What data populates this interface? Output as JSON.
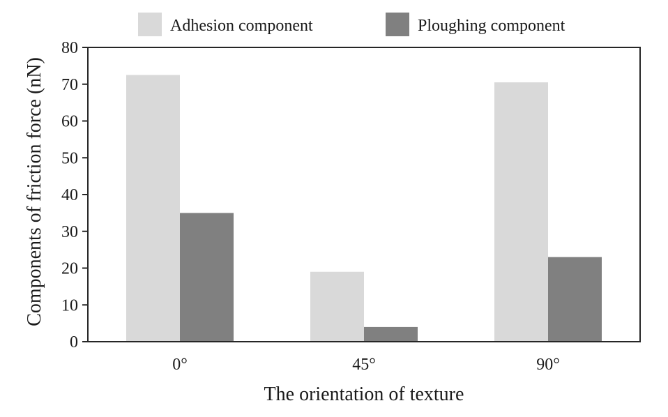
{
  "chart_data": {
    "type": "bar",
    "title": "",
    "xlabel": "The orientation of texture",
    "ylabel": "Components of friction force (nN)",
    "categories": [
      "0°",
      "45°",
      "90°"
    ],
    "series": [
      {
        "name": "Adhesion component",
        "values": [
          72.5,
          19,
          70.5
        ],
        "color": "#d9d9d9"
      },
      {
        "name": "Ploughing component",
        "values": [
          35,
          4,
          23
        ],
        "color": "#808080"
      }
    ],
    "ylim": [
      0,
      80
    ],
    "yticks": [
      0,
      10,
      20,
      30,
      40,
      50,
      60,
      70,
      80
    ],
    "grid": false,
    "legend_position": "top"
  }
}
